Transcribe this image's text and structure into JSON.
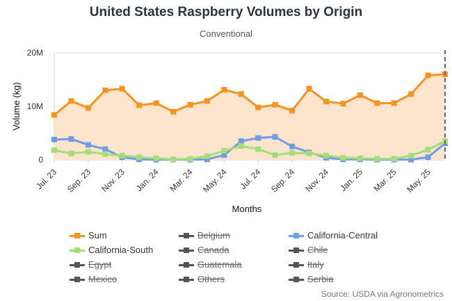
{
  "chart_data": {
    "type": "line",
    "title": "United States Raspberry Volumes by Origin",
    "subtitle": "Conventional",
    "xlabel": "Months",
    "ylabel": "Volume (kg)",
    "ylim": [
      0,
      20000000
    ],
    "y_ticks": [
      {
        "value": 0,
        "label": "0"
      },
      {
        "value": 10000000,
        "label": "10M"
      },
      {
        "value": 20000000,
        "label": "20M"
      }
    ],
    "x_tick_labels": [
      {
        "index": 0,
        "label": "Jul. 23"
      },
      {
        "index": 2,
        "label": "Sep. 23"
      },
      {
        "index": 4,
        "label": "Nov. 23"
      },
      {
        "index": 6,
        "label": "Jan. 24"
      },
      {
        "index": 8,
        "label": "Mar. 24"
      },
      {
        "index": 10,
        "label": "May. 24"
      },
      {
        "index": 12,
        "label": "Jul. 24"
      },
      {
        "index": 14,
        "label": "Sep. 24"
      },
      {
        "index": 16,
        "label": "Nov. 24"
      },
      {
        "index": 18,
        "label": "Jan. 25"
      },
      {
        "index": 20,
        "label": "Mar. 25"
      },
      {
        "index": 22,
        "label": "May. 25"
      }
    ],
    "n_points": 24,
    "series": [
      {
        "name": "Sum",
        "color": "#f7931e",
        "fill": "#fde4cc",
        "visible": true,
        "area": true,
        "values": [
          8400000,
          11000000,
          9700000,
          13000000,
          13300000,
          10200000,
          10600000,
          9000000,
          10300000,
          11000000,
          13100000,
          12300000,
          9800000,
          10300000,
          9200000,
          13300000,
          10900000,
          10500000,
          12100000,
          10600000,
          10600000,
          12300000,
          15800000,
          16000000
        ]
      },
      {
        "name": "California-Central",
        "color": "#6f9ce6",
        "visible": true,
        "area": false,
        "values": [
          3800000,
          3900000,
          2800000,
          2000000,
          500000,
          100000,
          50000,
          50000,
          50000,
          100000,
          900000,
          3500000,
          4100000,
          4300000,
          2500000,
          1400000,
          400000,
          100000,
          100000,
          50000,
          50000,
          50000,
          500000,
          3100000
        ]
      },
      {
        "name": "California-South",
        "color": "#a3de7b",
        "visible": true,
        "area": false,
        "values": [
          1800000,
          1200000,
          1500000,
          1100000,
          800000,
          500000,
          300000,
          100000,
          200000,
          700000,
          1700000,
          2600000,
          2000000,
          900000,
          1300000,
          1200000,
          800000,
          400000,
          300000,
          200000,
          200000,
          800000,
          1900000,
          3500000
        ]
      }
    ],
    "marker_line_index": 23
  },
  "legend": {
    "items": [
      {
        "label": "Sum",
        "color": "#f7931e",
        "hidden": false
      },
      {
        "label": "Belgium",
        "color": "#555555",
        "hidden": true
      },
      {
        "label": "California-Central",
        "color": "#6f9ce6",
        "hidden": false
      },
      {
        "label": "California-South",
        "color": "#a3de7b",
        "hidden": false
      },
      {
        "label": "Canada",
        "color": "#555555",
        "hidden": true
      },
      {
        "label": "Chile",
        "color": "#555555",
        "hidden": true
      },
      {
        "label": "Egypt",
        "color": "#555555",
        "hidden": true
      },
      {
        "label": "Guatemala",
        "color": "#555555",
        "hidden": true
      },
      {
        "label": "Italy",
        "color": "#555555",
        "hidden": true
      },
      {
        "label": "Mexico",
        "color": "#555555",
        "hidden": true
      },
      {
        "label": "Others",
        "color": "#555555",
        "hidden": true
      },
      {
        "label": "Serbia",
        "color": "#555555",
        "hidden": true
      }
    ]
  },
  "source": "Source: USDA via Agronometrics"
}
